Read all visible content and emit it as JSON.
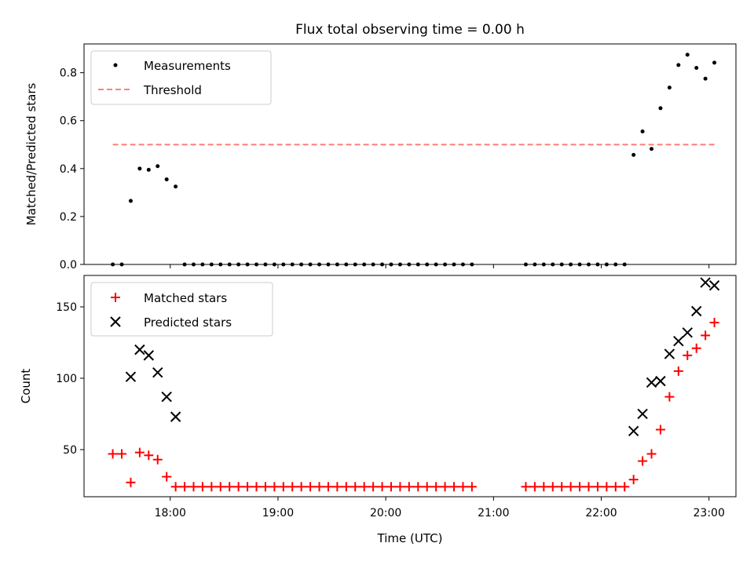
{
  "chart_data": [
    {
      "type": "scatter",
      "title": "Flux total observing time = 0.00 h",
      "xlabel": "",
      "ylabel": "Matched/Predicted stars",
      "xlim": [
        "17:12",
        "23:15"
      ],
      "ylim": [
        0,
        0.92
      ],
      "yticks": [
        0.0,
        0.2,
        0.4,
        0.6,
        0.8
      ],
      "ytick_labels": [
        "0.0",
        "0.2",
        "0.4",
        "0.6",
        "0.8"
      ],
      "xticks": [
        "18:00",
        "19:00",
        "20:00",
        "21:00",
        "22:00",
        "23:00"
      ],
      "legend": {
        "placement": "upper-left",
        "entries": [
          "Measurements",
          "Threshold"
        ]
      },
      "series": [
        {
          "name": "Measurements",
          "marker": "dot",
          "color": "#000000",
          "points": [
            [
              "17:28",
              0.0
            ],
            [
              "17:33",
              0.0
            ],
            [
              "17:38",
              0.265
            ],
            [
              "17:43",
              0.4
            ],
            [
              "17:48",
              0.395
            ],
            [
              "17:53",
              0.41
            ],
            [
              "17:58",
              0.355
            ],
            [
              "18:03",
              0.325
            ],
            [
              "18:08",
              0.0
            ],
            [
              "18:13",
              0.0
            ],
            [
              "18:18",
              0.0
            ],
            [
              "18:23",
              0.0
            ],
            [
              "18:28",
              0.0
            ],
            [
              "18:33",
              0.0
            ],
            [
              "18:38",
              0.0
            ],
            [
              "18:43",
              0.0
            ],
            [
              "18:48",
              0.0
            ],
            [
              "18:53",
              0.0
            ],
            [
              "18:58",
              0.0
            ],
            [
              "19:03",
              0.0
            ],
            [
              "19:08",
              0.0
            ],
            [
              "19:13",
              0.0
            ],
            [
              "19:18",
              0.0
            ],
            [
              "19:23",
              0.0
            ],
            [
              "19:28",
              0.0
            ],
            [
              "19:33",
              0.0
            ],
            [
              "19:38",
              0.0
            ],
            [
              "19:43",
              0.0
            ],
            [
              "19:48",
              0.0
            ],
            [
              "19:53",
              0.0
            ],
            [
              "19:58",
              0.0
            ],
            [
              "20:03",
              0.0
            ],
            [
              "20:08",
              0.0
            ],
            [
              "20:13",
              0.0
            ],
            [
              "20:18",
              0.0
            ],
            [
              "20:23",
              0.0
            ],
            [
              "20:28",
              0.0
            ],
            [
              "20:33",
              0.0
            ],
            [
              "20:38",
              0.0
            ],
            [
              "20:43",
              0.0
            ],
            [
              "20:48",
              0.0
            ],
            [
              "21:18",
              0.0
            ],
            [
              "21:23",
              0.0
            ],
            [
              "21:28",
              0.0
            ],
            [
              "21:33",
              0.0
            ],
            [
              "21:38",
              0.0
            ],
            [
              "21:43",
              0.0
            ],
            [
              "21:48",
              0.0
            ],
            [
              "21:53",
              0.0
            ],
            [
              "21:58",
              0.0
            ],
            [
              "22:03",
              0.0
            ],
            [
              "22:08",
              0.0
            ],
            [
              "22:13",
              0.0
            ],
            [
              "22:18",
              0.457
            ],
            [
              "22:23",
              0.555
            ],
            [
              "22:28",
              0.482
            ],
            [
              "22:33",
              0.652
            ],
            [
              "22:38",
              0.738
            ],
            [
              "22:43",
              0.832
            ],
            [
              "22:48",
              0.875
            ],
            [
              "22:53",
              0.82
            ],
            [
              "22:58",
              0.775
            ],
            [
              "23:03",
              0.842
            ]
          ]
        },
        {
          "name": "Threshold",
          "line": "dashed",
          "color": "#ff7f7f",
          "points": [
            [
              "17:28",
              0.5
            ],
            [
              "23:03",
              0.5
            ]
          ]
        }
      ]
    },
    {
      "type": "scatter",
      "title": "",
      "xlabel": "Time (UTC)",
      "ylabel": "Count",
      "xlim": [
        "17:12",
        "23:15"
      ],
      "ylim": [
        17,
        172
      ],
      "yticks": [
        50,
        100,
        150
      ],
      "ytick_labels": [
        "50",
        "100",
        "150"
      ],
      "xticks": [
        "18:00",
        "19:00",
        "20:00",
        "21:00",
        "22:00",
        "23:00"
      ],
      "xtick_labels": [
        "18:00",
        "19:00",
        "20:00",
        "21:00",
        "22:00",
        "23:00"
      ],
      "legend": {
        "placement": "upper-left",
        "entries": [
          "Matched stars",
          "Predicted stars"
        ]
      },
      "series": [
        {
          "name": "Matched stars",
          "marker": "plus",
          "color": "#ff0000",
          "points": [
            [
              "17:28",
              47
            ],
            [
              "17:33",
              47
            ],
            [
              "17:38",
              27
            ],
            [
              "17:43",
              48
            ],
            [
              "17:48",
              46
            ],
            [
              "17:53",
              43
            ],
            [
              "17:58",
              31
            ],
            [
              "18:03",
              24
            ],
            [
              "18:08",
              24
            ],
            [
              "18:13",
              24
            ],
            [
              "18:18",
              24
            ],
            [
              "18:23",
              24
            ],
            [
              "18:28",
              24
            ],
            [
              "18:33",
              24
            ],
            [
              "18:38",
              24
            ],
            [
              "18:43",
              24
            ],
            [
              "18:48",
              24
            ],
            [
              "18:53",
              24
            ],
            [
              "18:58",
              24
            ],
            [
              "19:03",
              24
            ],
            [
              "19:08",
              24
            ],
            [
              "19:13",
              24
            ],
            [
              "19:18",
              24
            ],
            [
              "19:23",
              24
            ],
            [
              "19:28",
              24
            ],
            [
              "19:33",
              24
            ],
            [
              "19:38",
              24
            ],
            [
              "19:43",
              24
            ],
            [
              "19:48",
              24
            ],
            [
              "19:53",
              24
            ],
            [
              "19:58",
              24
            ],
            [
              "20:03",
              24
            ],
            [
              "20:08",
              24
            ],
            [
              "20:13",
              24
            ],
            [
              "20:18",
              24
            ],
            [
              "20:23",
              24
            ],
            [
              "20:28",
              24
            ],
            [
              "20:33",
              24
            ],
            [
              "20:38",
              24
            ],
            [
              "20:43",
              24
            ],
            [
              "20:48",
              24
            ],
            [
              "21:18",
              24
            ],
            [
              "21:23",
              24
            ],
            [
              "21:28",
              24
            ],
            [
              "21:33",
              24
            ],
            [
              "21:38",
              24
            ],
            [
              "21:43",
              24
            ],
            [
              "21:48",
              24
            ],
            [
              "21:53",
              24
            ],
            [
              "21:58",
              24
            ],
            [
              "22:03",
              24
            ],
            [
              "22:08",
              24
            ],
            [
              "22:13",
              24
            ],
            [
              "22:18",
              29
            ],
            [
              "22:23",
              42
            ],
            [
              "22:28",
              47
            ],
            [
              "22:33",
              64
            ],
            [
              "22:38",
              87
            ],
            [
              "22:43",
              105
            ],
            [
              "22:48",
              116
            ],
            [
              "22:53",
              121
            ],
            [
              "22:58",
              130
            ],
            [
              "23:03",
              139
            ]
          ]
        },
        {
          "name": "Predicted stars",
          "marker": "x",
          "color": "#000000",
          "points": [
            [
              "17:38",
              101
            ],
            [
              "17:43",
              120
            ],
            [
              "17:48",
              116
            ],
            [
              "17:53",
              104
            ],
            [
              "17:58",
              87
            ],
            [
              "18:03",
              73
            ],
            [
              "22:18",
              63
            ],
            [
              "22:23",
              75
            ],
            [
              "22:28",
              97
            ],
            [
              "22:33",
              98
            ],
            [
              "22:38",
              117
            ],
            [
              "22:43",
              126
            ],
            [
              "22:48",
              132
            ],
            [
              "22:53",
              147
            ],
            [
              "22:58",
              167
            ],
            [
              "23:03",
              165
            ]
          ]
        }
      ]
    }
  ]
}
